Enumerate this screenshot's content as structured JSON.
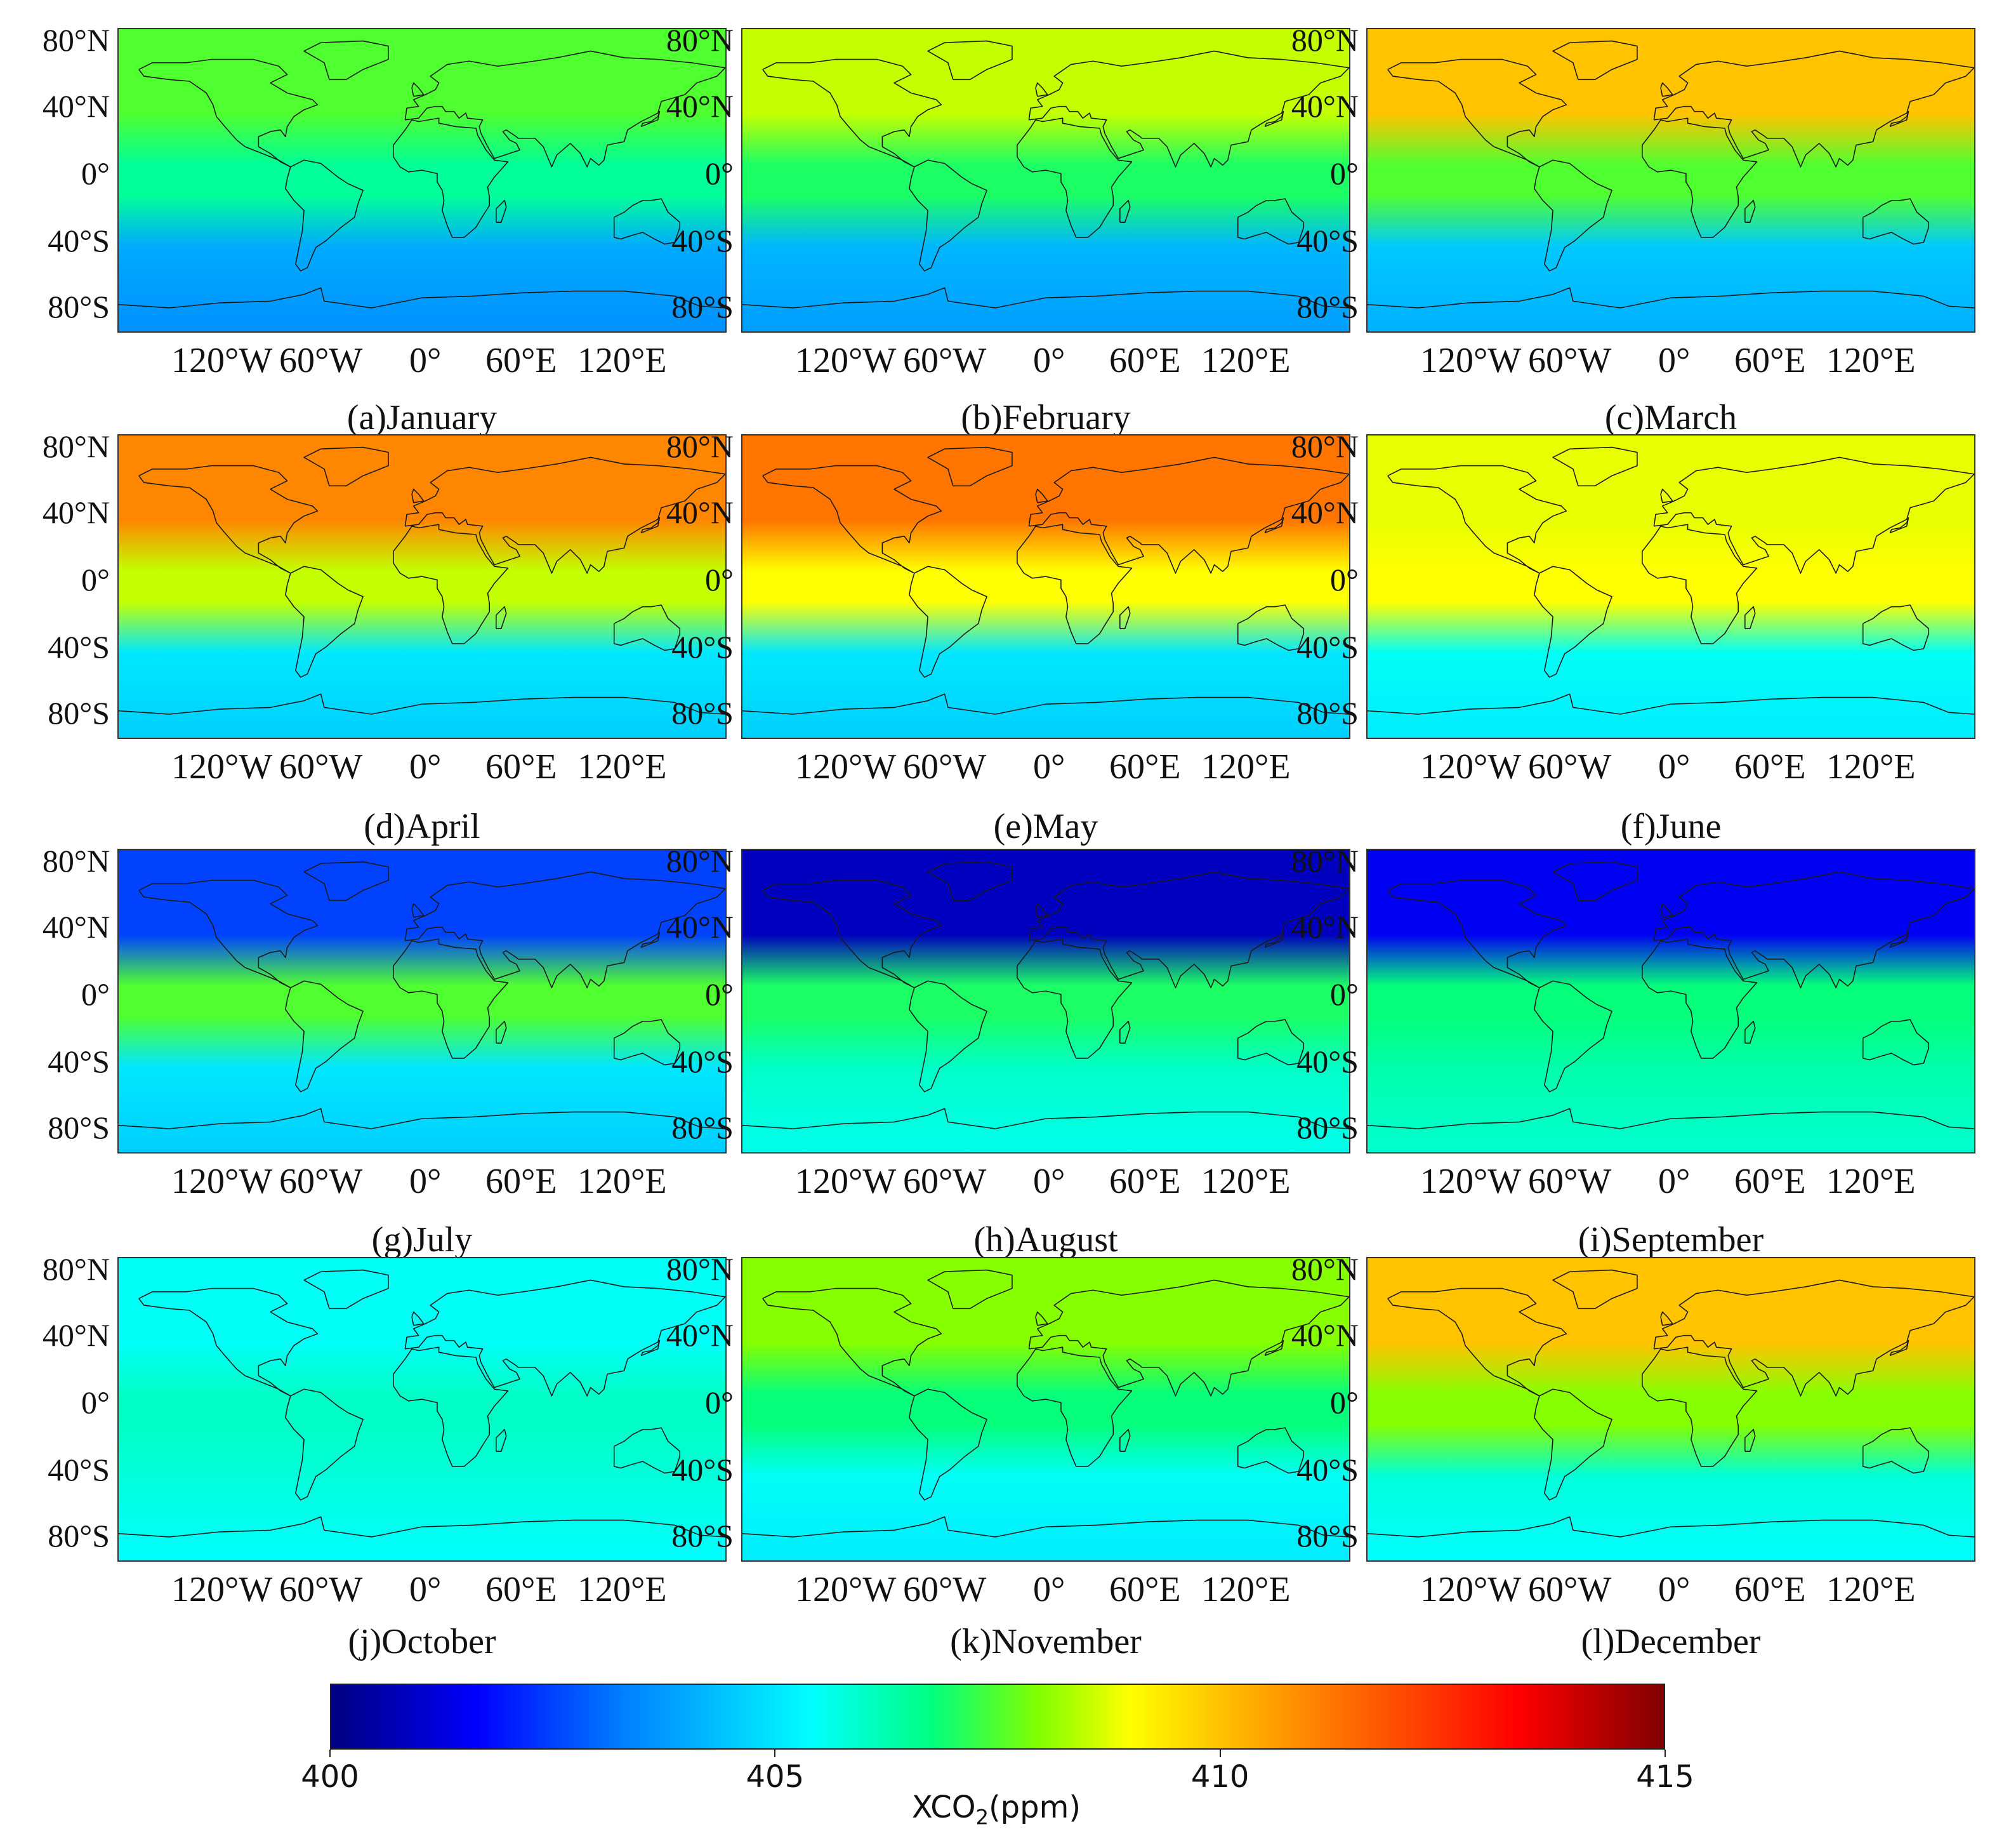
{
  "figure": {
    "lat_labels": [
      "80°N",
      "40°N",
      "0°",
      "40°S",
      "80°S"
    ],
    "lon_labels": [
      "120°W",
      "60°W",
      "0°",
      "60°E",
      "120°E"
    ],
    "panels": [
      {
        "caption": "(a)January",
        "mean_band_ppm": {
          "north": 407.5,
          "tropics": 406.5,
          "south": 404.0
        }
      },
      {
        "caption": "(b)February",
        "mean_band_ppm": {
          "north": 408.5,
          "tropics": 407.0,
          "south": 404.2
        }
      },
      {
        "caption": "(c)March",
        "mean_band_ppm": {
          "north": 410.0,
          "tropics": 407.5,
          "south": 404.5
        }
      },
      {
        "caption": "(d)April",
        "mean_band_ppm": {
          "north": 411.0,
          "tropics": 408.5,
          "south": 405.0
        }
      },
      {
        "caption": "(e)May",
        "mean_band_ppm": {
          "north": 411.3,
          "tropics": 409.0,
          "south": 405.0
        }
      },
      {
        "caption": "(f)June",
        "mean_band_ppm": {
          "north": 408.8,
          "tropics": 409.0,
          "south": 405.5
        }
      },
      {
        "caption": "(g)July",
        "mean_band_ppm": {
          "north": 402.5,
          "tropics": 407.5,
          "south": 405.0
        }
      },
      {
        "caption": "(h)August",
        "mean_band_ppm": {
          "north": 400.8,
          "tropics": 407.0,
          "south": 406.0
        }
      },
      {
        "caption": "(i)September",
        "mean_band_ppm": {
          "north": 401.5,
          "tropics": 406.8,
          "south": 406.3
        }
      },
      {
        "caption": "(j)October",
        "mean_band_ppm": {
          "north": 405.5,
          "tropics": 406.0,
          "south": 405.8
        }
      },
      {
        "caption": "(k)November",
        "mean_band_ppm": {
          "north": 408.0,
          "tropics": 406.8,
          "south": 405.5
        }
      },
      {
        "caption": "(l)December",
        "mean_band_ppm": {
          "north": 410.0,
          "tropics": 408.0,
          "south": 405.8
        }
      }
    ]
  },
  "colorbar": {
    "min": 400,
    "max": 415,
    "ticks": [
      "400",
      "405",
      "410",
      "415"
    ],
    "label_prefix": "XCO",
    "label_sub": "2",
    "label_suffix": "(ppm)",
    "colors": [
      "#000080",
      "#0000ff",
      "#0080ff",
      "#00ffff",
      "#00ff80",
      "#80ff00",
      "#ffff00",
      "#ff8000",
      "#ff0000",
      "#800000"
    ]
  }
}
